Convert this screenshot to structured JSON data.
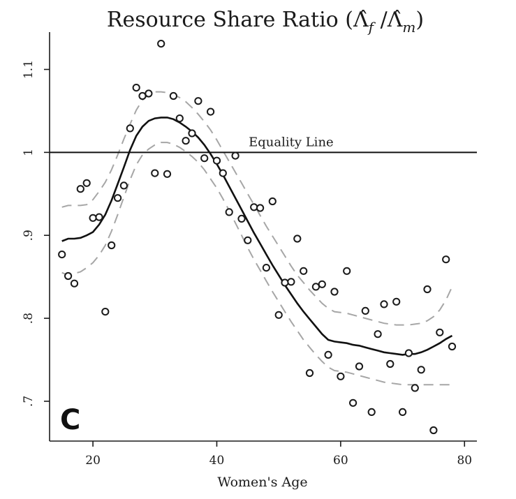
{
  "chart_data": {
    "type": "scatter",
    "title": "Resource Share Ratio (Λ̂_f / Λ̂_m)",
    "title_parts": {
      "text": "Resource Share Ratio (",
      "sym_f": "Λ̂",
      "sub_f": "f",
      "slash": " /",
      "sym_m": "Λ̂",
      "sub_m": "m",
      "close": ")"
    },
    "xlabel": "Women's Age",
    "ylabel": "",
    "xlim": [
      13,
      82
    ],
    "ylim": [
      0.652,
      1.145
    ],
    "x_ticks": [
      20,
      40,
      60,
      80
    ],
    "y_ticks": [
      0.7,
      0.8,
      0.9,
      1.0,
      1.1
    ],
    "y_tick_labels": [
      ".7",
      ".8",
      ".9",
      "1",
      "1.1"
    ],
    "grid": false,
    "panel_label": "C",
    "reference_line": {
      "y": 1.0,
      "label": "Equality Line"
    },
    "scatter_points": [
      [
        15,
        0.877
      ],
      [
        16,
        0.851
      ],
      [
        17,
        0.842
      ],
      [
        18,
        0.956
      ],
      [
        19,
        0.963
      ],
      [
        20,
        0.921
      ],
      [
        21,
        0.922
      ],
      [
        22,
        0.808
      ],
      [
        23,
        0.888
      ],
      [
        24,
        0.945
      ],
      [
        25,
        0.96
      ],
      [
        26,
        1.029
      ],
      [
        27,
        1.078
      ],
      [
        28,
        1.068
      ],
      [
        29,
        1.071
      ],
      [
        30,
        0.975
      ],
      [
        31,
        1.131
      ],
      [
        32,
        0.974
      ],
      [
        33,
        1.068
      ],
      [
        34,
        1.041
      ],
      [
        35,
        1.014
      ],
      [
        36,
        1.023
      ],
      [
        37,
        1.062
      ],
      [
        38,
        0.993
      ],
      [
        39,
        1.049
      ],
      [
        40,
        0.99
      ],
      [
        41,
        0.975
      ],
      [
        42,
        0.928
      ],
      [
        43,
        0.996
      ],
      [
        44,
        0.92
      ],
      [
        45,
        0.894
      ],
      [
        46,
        0.934
      ],
      [
        47,
        0.933
      ],
      [
        48,
        0.861
      ],
      [
        49,
        0.941
      ],
      [
        50,
        0.804
      ],
      [
        51,
        0.843
      ],
      [
        52,
        0.844
      ],
      [
        53,
        0.896
      ],
      [
        54,
        0.857
      ],
      [
        55,
        0.734
      ],
      [
        56,
        0.838
      ],
      [
        57,
        0.841
      ],
      [
        58,
        0.756
      ],
      [
        59,
        0.832
      ],
      [
        60,
        0.73
      ],
      [
        61,
        0.857
      ],
      [
        62,
        0.698
      ],
      [
        63,
        0.742
      ],
      [
        64,
        0.809
      ],
      [
        65,
        0.687
      ],
      [
        66,
        0.781
      ],
      [
        67,
        0.817
      ],
      [
        68,
        0.745
      ],
      [
        69,
        0.82
      ],
      [
        70,
        0.687
      ],
      [
        71,
        0.758
      ],
      [
        72,
        0.716
      ],
      [
        73,
        0.738
      ],
      [
        74,
        0.835
      ],
      [
        75,
        0.665
      ],
      [
        76,
        0.783
      ],
      [
        77,
        0.871
      ],
      [
        78,
        0.766
      ]
    ],
    "fit_line": [
      [
        15,
        0.893
      ],
      [
        16,
        0.896
      ],
      [
        17,
        0.896
      ],
      [
        18,
        0.897
      ],
      [
        19,
        0.9
      ],
      [
        20,
        0.904
      ],
      [
        21,
        0.913
      ],
      [
        22,
        0.925
      ],
      [
        23,
        0.942
      ],
      [
        24,
        0.962
      ],
      [
        25,
        0.982
      ],
      [
        26,
        1.003
      ],
      [
        27,
        1.02
      ],
      [
        28,
        1.031
      ],
      [
        29,
        1.038
      ],
      [
        30,
        1.041
      ],
      [
        31,
        1.042
      ],
      [
        32,
        1.042
      ],
      [
        33,
        1.04
      ],
      [
        34,
        1.036
      ],
      [
        35,
        1.031
      ],
      [
        36,
        1.025
      ],
      [
        37,
        1.018
      ],
      [
        38,
        1.009
      ],
      [
        39,
        0.998
      ],
      [
        40,
        0.986
      ],
      [
        41,
        0.973
      ],
      [
        42,
        0.959
      ],
      [
        43,
        0.945
      ],
      [
        44,
        0.931
      ],
      [
        45,
        0.917
      ],
      [
        46,
        0.903
      ],
      [
        47,
        0.89
      ],
      [
        48,
        0.877
      ],
      [
        49,
        0.864
      ],
      [
        50,
        0.852
      ],
      [
        51,
        0.84
      ],
      [
        52,
        0.829
      ],
      [
        53,
        0.818
      ],
      [
        54,
        0.808
      ],
      [
        55,
        0.799
      ],
      [
        56,
        0.79
      ],
      [
        57,
        0.781
      ],
      [
        58,
        0.774
      ],
      [
        59,
        0.772
      ],
      [
        60,
        0.771
      ],
      [
        61,
        0.77
      ],
      [
        62,
        0.768
      ],
      [
        63,
        0.767
      ],
      [
        64,
        0.765
      ],
      [
        65,
        0.763
      ],
      [
        66,
        0.761
      ],
      [
        67,
        0.759
      ],
      [
        68,
        0.758
      ],
      [
        69,
        0.757
      ],
      [
        70,
        0.756
      ],
      [
        71,
        0.757
      ],
      [
        72,
        0.757
      ],
      [
        73,
        0.759
      ],
      [
        74,
        0.762
      ],
      [
        75,
        0.766
      ],
      [
        76,
        0.77
      ],
      [
        77,
        0.775
      ],
      [
        78,
        0.779
      ]
    ],
    "ci_upper": [
      [
        15,
        0.934
      ],
      [
        16,
        0.936
      ],
      [
        17,
        0.936
      ],
      [
        18,
        0.936
      ],
      [
        19,
        0.937
      ],
      [
        20,
        0.943
      ],
      [
        21,
        0.953
      ],
      [
        22,
        0.964
      ],
      [
        23,
        0.979
      ],
      [
        24,
        0.997
      ],
      [
        25,
        1.016
      ],
      [
        26,
        1.034
      ],
      [
        27,
        1.051
      ],
      [
        28,
        1.063
      ],
      [
        29,
        1.07
      ],
      [
        30,
        1.073
      ],
      [
        31,
        1.073
      ],
      [
        32,
        1.072
      ],
      [
        33,
        1.07
      ],
      [
        34,
        1.066
      ],
      [
        35,
        1.061
      ],
      [
        36,
        1.054
      ],
      [
        37,
        1.046
      ],
      [
        38,
        1.037
      ],
      [
        39,
        1.027
      ],
      [
        40,
        1.015
      ],
      [
        41,
        1.002
      ],
      [
        42,
        0.989
      ],
      [
        43,
        0.976
      ],
      [
        44,
        0.963
      ],
      [
        45,
        0.95
      ],
      [
        46,
        0.937
      ],
      [
        47,
        0.924
      ],
      [
        48,
        0.911
      ],
      [
        49,
        0.899
      ],
      [
        50,
        0.887
      ],
      [
        51,
        0.875
      ],
      [
        52,
        0.863
      ],
      [
        53,
        0.852
      ],
      [
        54,
        0.843
      ],
      [
        55,
        0.834
      ],
      [
        56,
        0.826
      ],
      [
        57,
        0.818
      ],
      [
        58,
        0.812
      ],
      [
        59,
        0.808
      ],
      [
        60,
        0.807
      ],
      [
        61,
        0.806
      ],
      [
        62,
        0.804
      ],
      [
        63,
        0.802
      ],
      [
        64,
        0.8
      ],
      [
        65,
        0.798
      ],
      [
        66,
        0.796
      ],
      [
        67,
        0.794
      ],
      [
        68,
        0.793
      ],
      [
        69,
        0.792
      ],
      [
        70,
        0.792
      ],
      [
        71,
        0.792
      ],
      [
        72,
        0.793
      ],
      [
        73,
        0.794
      ],
      [
        74,
        0.797
      ],
      [
        75,
        0.802
      ],
      [
        76,
        0.81
      ],
      [
        77,
        0.822
      ],
      [
        78,
        0.838
      ]
    ],
    "ci_lower": [
      [
        15,
        0.855
      ],
      [
        16,
        0.852
      ],
      [
        17,
        0.854
      ],
      [
        18,
        0.856
      ],
      [
        19,
        0.861
      ],
      [
        20,
        0.867
      ],
      [
        21,
        0.876
      ],
      [
        22,
        0.888
      ],
      [
        23,
        0.905
      ],
      [
        24,
        0.925
      ],
      [
        25,
        0.946
      ],
      [
        26,
        0.967
      ],
      [
        27,
        0.985
      ],
      [
        28,
        0.997
      ],
      [
        29,
        1.004
      ],
      [
        30,
        1.009
      ],
      [
        31,
        1.012
      ],
      [
        32,
        1.012
      ],
      [
        33,
        1.01
      ],
      [
        34,
        1.006
      ],
      [
        35,
        1.001
      ],
      [
        36,
        0.995
      ],
      [
        37,
        0.988
      ],
      [
        38,
        0.979
      ],
      [
        39,
        0.968
      ],
      [
        40,
        0.957
      ],
      [
        41,
        0.944
      ],
      [
        42,
        0.93
      ],
      [
        43,
        0.915
      ],
      [
        44,
        0.9
      ],
      [
        45,
        0.885
      ],
      [
        46,
        0.871
      ],
      [
        47,
        0.858
      ],
      [
        48,
        0.845
      ],
      [
        49,
        0.832
      ],
      [
        50,
        0.82
      ],
      [
        51,
        0.808
      ],
      [
        52,
        0.796
      ],
      [
        53,
        0.785
      ],
      [
        54,
        0.774
      ],
      [
        55,
        0.765
      ],
      [
        56,
        0.756
      ],
      [
        57,
        0.748
      ],
      [
        58,
        0.741
      ],
      [
        59,
        0.737
      ],
      [
        60,
        0.736
      ],
      [
        61,
        0.735
      ],
      [
        62,
        0.733
      ],
      [
        63,
        0.731
      ],
      [
        64,
        0.729
      ],
      [
        65,
        0.727
      ],
      [
        66,
        0.725
      ],
      [
        67,
        0.723
      ],
      [
        68,
        0.722
      ],
      [
        69,
        0.721
      ],
      [
        70,
        0.72
      ],
      [
        71,
        0.72
      ],
      [
        72,
        0.72
      ],
      [
        73,
        0.72
      ],
      [
        74,
        0.72
      ],
      [
        75,
        0.72
      ],
      [
        76,
        0.72
      ],
      [
        77,
        0.72
      ],
      [
        78,
        0.72
      ]
    ],
    "colors": {
      "points": "#1a1a1a",
      "fit": "#111111",
      "ci": "#a6a6a6",
      "axis": "#1a1a1a",
      "reference": "#111111"
    }
  }
}
